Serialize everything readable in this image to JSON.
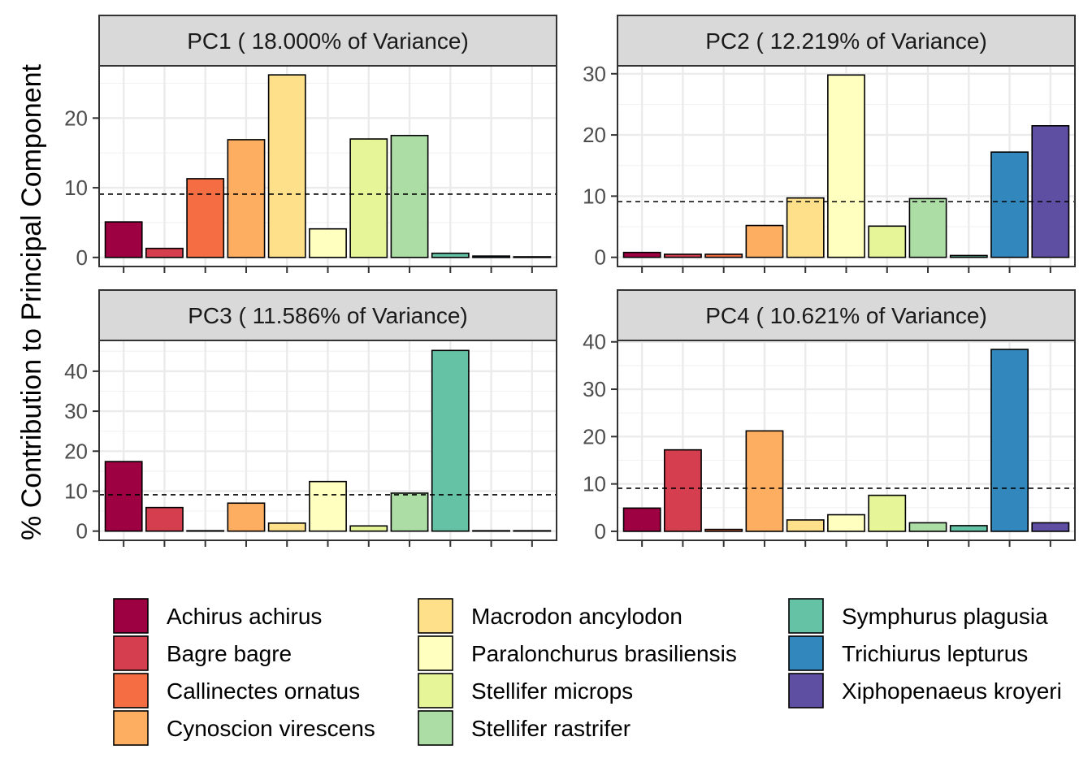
{
  "chart_data": {
    "type": "bar",
    "ylabel": "% Contribution to Principal Component",
    "xlabel": "",
    "categories": [
      "Achirus achirus",
      "Bagre bagre",
      "Callinectes ornatus",
      "Cynoscion virescens",
      "Macrodon ancylodon",
      "Paralonchurus brasiliensis",
      "Stellifer microps",
      "Stellifer rastrifer",
      "Symphurus plagusia",
      "Trichiurus lepturus",
      "Xiphopenaeus kroyeri"
    ],
    "colors": [
      "#9E0142",
      "#D53E4F",
      "#F46D43",
      "#FDAE61",
      "#FEE08B",
      "#FFFFBF",
      "#E6F598",
      "#ABDDA4",
      "#66C2A5",
      "#3288BD",
      "#5E4FA2"
    ],
    "reference_line": 9.09,
    "grid": true,
    "legend_position": "bottom",
    "panels": [
      {
        "title": "PC1 ( 18.000% of Variance)",
        "values": [
          5.1,
          1.3,
          11.3,
          16.9,
          26.2,
          4.1,
          17.0,
          17.5,
          0.6,
          0.2,
          0.1
        ],
        "ylim": [
          -1.3,
          27.5
        ],
        "yticks": [
          0,
          10,
          20
        ]
      },
      {
        "title": "PC2 ( 12.219% of Variance)",
        "values": [
          0.8,
          0.5,
          0.5,
          5.2,
          9.7,
          29.8,
          5.1,
          9.6,
          0.3,
          17.2,
          21.5
        ],
        "ylim": [
          -1.5,
          31.3
        ],
        "yticks": [
          0,
          10,
          20,
          30
        ]
      },
      {
        "title": "PC3 ( 11.586% of Variance)",
        "values": [
          17.4,
          5.9,
          0.1,
          7.0,
          2.0,
          12.4,
          1.3,
          9.5,
          45.2,
          0.1,
          0.1
        ],
        "ylim": [
          -2.3,
          47.7
        ],
        "yticks": [
          0,
          10,
          20,
          30,
          40
        ]
      },
      {
        "title": "PC4 ( 10.621% of Variance)",
        "values": [
          4.9,
          17.2,
          0.4,
          21.2,
          2.4,
          3.5,
          7.6,
          1.8,
          1.2,
          38.4,
          1.8
        ],
        "ylim": [
          -1.9,
          40.3
        ],
        "yticks": [
          0,
          10,
          20,
          30,
          40
        ]
      }
    ]
  }
}
